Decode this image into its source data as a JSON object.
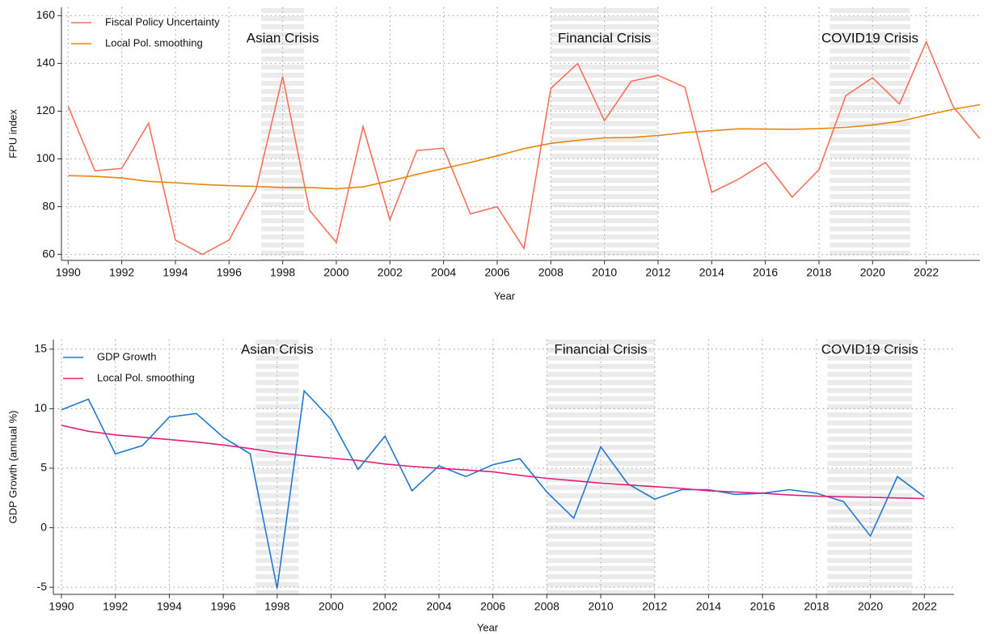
{
  "chart_data": [
    {
      "type": "line",
      "x": [
        1990,
        1991,
        1992,
        1993,
        1994,
        1995,
        1996,
        1997,
        1998,
        1999,
        2000,
        2001,
        2002,
        2003,
        2004,
        2005,
        2006,
        2007,
        2008,
        2009,
        2010,
        2011,
        2012,
        2013,
        2014,
        2015,
        2016,
        2017,
        2018,
        2019,
        2020,
        2021,
        2022,
        2023,
        2024
      ],
      "series": [
        {
          "name": "Fiscal Policy Uncertainty",
          "color": "#f8705a",
          "values": [
            122,
            95,
            96,
            115,
            66,
            60,
            66,
            87,
            134.5,
            78.5,
            65,
            113.5,
            74.5,
            103.5,
            104.5,
            77,
            80,
            62.5,
            129.5,
            140,
            116,
            132.5,
            135,
            130,
            86,
            91.5,
            98.5,
            84,
            95.5,
            126.5,
            134,
            123,
            149,
            122,
            108.5
          ]
        },
        {
          "name": "Local Pol. smoothing",
          "color": "#e8860a",
          "values": [
            93,
            92.7,
            92,
            90.6,
            90,
            89.3,
            88.8,
            88.5,
            88,
            88,
            87.5,
            88.3,
            90.8,
            93.5,
            96,
            98.5,
            101.3,
            104.3,
            106.5,
            107.8,
            108.8,
            109,
            109.8,
            111,
            111.8,
            112.6,
            112.5,
            112.4,
            112.7,
            113.2,
            114.2,
            115.7,
            118.3,
            120.8,
            122.7
          ]
        }
      ],
      "shaded_regions": [
        {
          "label": "Asian Crisis",
          "x0": 1997.2,
          "x1": 1998.8
        },
        {
          "label": "Financial Crisis",
          "x0": 2008,
          "x1": 2012
        },
        {
          "label": "COVID19 Crisis",
          "x0": 2018.4,
          "x1": 2021.4
        }
      ],
      "x_label": "Year",
      "y_label": "FPU index",
      "xlim": [
        1989.75,
        2024
      ],
      "xticks": [
        1990,
        1992,
        1994,
        1996,
        1998,
        2000,
        2002,
        2004,
        2006,
        2008,
        2010,
        2012,
        2014,
        2016,
        2018,
        2020,
        2022
      ],
      "ylim": [
        57.5,
        163.5
      ],
      "yticks": [
        60,
        80,
        100,
        120,
        140,
        160
      ],
      "grid": true,
      "legend": "upper left"
    },
    {
      "type": "line",
      "x": [
        1990,
        1991,
        1992,
        1993,
        1994,
        1995,
        1996,
        1997,
        1998,
        1999,
        2000,
        2001,
        2002,
        2003,
        2004,
        2005,
        2006,
        2007,
        2008,
        2009,
        2010,
        2011,
        2012,
        2013,
        2014,
        2015,
        2016,
        2017,
        2018,
        2019,
        2020,
        2021,
        2022
      ],
      "series": [
        {
          "name": "GDP Growth",
          "color": "#1f78d1",
          "values": [
            9.9,
            10.8,
            6.2,
            6.9,
            9.3,
            9.6,
            7.6,
            6.2,
            -5.1,
            11.5,
            9.1,
            4.9,
            7.7,
            3.1,
            5.2,
            4.3,
            5.3,
            5.8,
            3.0,
            0.8,
            6.8,
            3.7,
            2.4,
            3.2,
            3.2,
            2.8,
            2.9,
            3.2,
            2.9,
            2.2,
            -0.7,
            4.3,
            2.6
          ]
        },
        {
          "name": "Local Pol. smoothing",
          "color": "#e0207a",
          "values": [
            8.6,
            8.1,
            7.8,
            7.6,
            7.4,
            7.2,
            6.95,
            6.65,
            6.3,
            6.05,
            5.85,
            5.65,
            5.35,
            5.15,
            5.0,
            4.85,
            4.7,
            4.4,
            4.15,
            3.95,
            3.75,
            3.6,
            3.45,
            3.3,
            3.1,
            3.0,
            2.9,
            2.75,
            2.65,
            2.6,
            2.55,
            2.5,
            2.45
          ]
        }
      ],
      "shaded_regions": [
        {
          "label": "Asian Crisis",
          "x0": 1997.2,
          "x1": 1998.8
        },
        {
          "label": "Financial Crisis",
          "x0": 2008,
          "x1": 2012
        },
        {
          "label": "COVID19 Crisis",
          "x0": 2018.4,
          "x1": 2021.55
        }
      ],
      "x_label": "Year",
      "y_label": "GDP Growth (annual %)",
      "xlim": [
        1989.7,
        2023.1
      ],
      "xticks": [
        1990,
        1992,
        1994,
        1996,
        1998,
        2000,
        2002,
        2004,
        2006,
        2008,
        2010,
        2012,
        2014,
        2016,
        2018,
        2020,
        2022
      ],
      "ylim": [
        -5.6,
        15.8
      ],
      "yticks": [
        -5,
        0,
        5,
        10,
        15
      ],
      "grid": true,
      "legend": "upper left"
    }
  ]
}
